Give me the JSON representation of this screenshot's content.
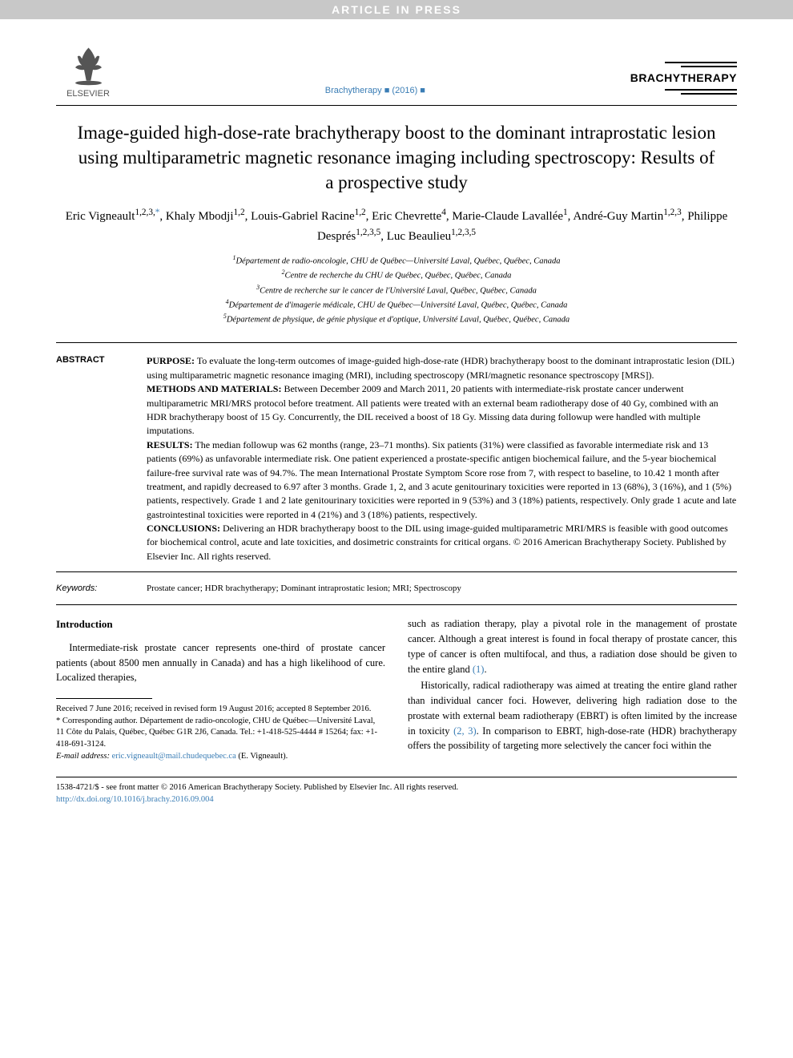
{
  "banner_text": "ARTICLE IN PRESS",
  "publisher_name": "ELSEVIER",
  "journal_ref": "Brachytherapy ■ (2016) ■",
  "journal_name": "BRACHYTHERAPY",
  "title": "Image-guided high-dose-rate brachytherapy boost to the dominant intraprostatic lesion using multiparametric magnetic resonance imaging including spectroscopy: Results of a prospective study",
  "authors_html": "Eric Vigneault<sup>1,2,3,</sup><sup class='sup-link'>*</sup>, Khaly Mbodji<sup>1,2</sup>, Louis-Gabriel Racine<sup>1,2</sup>, Eric Chevrette<sup>4</sup>, Marie-Claude Lavallée<sup>1</sup>, André-Guy Martin<sup>1,2,3</sup>, Philippe Després<sup>1,2,3,5</sup>, Luc Beaulieu<sup>1,2,3,5</sup>",
  "affiliations": [
    "<sup>1</sup>Département de radio-oncologie, CHU de Québec—Université Laval, Québec, Québec, Canada",
    "<sup>2</sup>Centre de recherche du CHU de Québec, Québec, Québec, Canada",
    "<sup>3</sup>Centre de recherche sur le cancer de l'Université Laval, Québec, Québec, Canada",
    "<sup>4</sup>Département de d'imagerie médicale, CHU de Québec—Université Laval, Québec, Québec, Canada",
    "<sup>5</sup>Département de physique, de génie physique et d'optique, Université Laval, Québec, Québec, Canada"
  ],
  "abstract_label": "ABSTRACT",
  "abstract": {
    "purpose_label": "PURPOSE:",
    "purpose": " To evaluate the long-term outcomes of image-guided high-dose-rate (HDR) brachytherapy boost to the dominant intraprostatic lesion (DIL) using multiparametric magnetic resonance imaging (MRI), including spectroscopy (MRI/magnetic resonance spectroscopy [MRS]).",
    "methods_label": "METHODS AND MATERIALS:",
    "methods": " Between December 2009 and March 2011, 20 patients with intermediate-risk prostate cancer underwent multiparametric MRI/MRS protocol before treatment. All patients were treated with an external beam radiotherapy dose of 40 Gy, combined with an HDR brachytherapy boost of 15 Gy. Concurrently, the DIL received a boost of 18 Gy. Missing data during followup were handled with multiple imputations.",
    "results_label": "RESULTS:",
    "results": " The median followup was 62 months (range, 23–71 months). Six patients (31%) were classified as favorable intermediate risk and 13 patients (69%) as unfavorable intermediate risk. One patient experienced a prostate-specific antigen biochemical failure, and the 5-year biochemical failure-free survival rate was of 94.7%. The mean International Prostate Symptom Score rose from 7, with respect to baseline, to 10.42 1 month after treatment, and rapidly decreased to 6.97 after 3 months. Grade 1, 2, and 3 acute genitourinary toxicities were reported in 13 (68%), 3 (16%), and 1 (5%) patients, respectively. Grade 1 and 2 late genitourinary toxicities were reported in 9 (53%) and 3 (18%) patients, respectively. Only grade 1 acute and late gastrointestinal toxicities were reported in 4 (21%) and 3 (18%) patients, respectively.",
    "conclusions_label": "CONCLUSIONS:",
    "conclusions": " Delivering an HDR brachytherapy boost to the DIL using image-guided multiparametric MRI/MRS is feasible with good outcomes for biochemical control, acute and late toxicities, and dosimetric constraints for critical organs. © 2016 American Brachytherapy Society. Published by Elsevier Inc. All rights reserved."
  },
  "keywords_label": "Keywords:",
  "keywords": "Prostate cancer; HDR brachytherapy; Dominant intraprostatic lesion; MRI; Spectroscopy",
  "intro_heading": "Introduction",
  "col1_para1": "Intermediate-risk prostate cancer represents one-third of prostate cancer patients (about 8500 men annually in Canada) and has a high likelihood of cure. Localized therapies,",
  "footnote_received": "Received 7 June 2016; received in revised form 19 August 2016; accepted 8 September 2016.",
  "footnote_corresponding": "* Corresponding author. Département de radio-oncologie, CHU de Québec—Université Laval, 11 Côte du Palais, Québec, Québec G1R 2J6, Canada. Tel.: +1-418-525-4444 # 15264; fax: +1-418-691-3124.",
  "footnote_email_label": "E-mail address:",
  "footnote_email": "eric.vigneault@mail.chudequebec.ca",
  "footnote_email_suffix": " (E. Vigneault).",
  "col2_para1": "such as radiation therapy, play a pivotal role in the management of prostate cancer. Although a great interest is found in focal therapy of prostate cancer, this type of cancer is often multifocal, and thus, a radiation dose should be given to the entire gland ",
  "cite1": "(1)",
  "col2_para1_end": ".",
  "col2_para2a": "Historically, radical radiotherapy was aimed at treating the entire gland rather than individual cancer foci. However, delivering high radiation dose to the prostate with external beam radiotherapy (EBRT) is often limited by the increase in toxicity ",
  "cite23": "(2, 3)",
  "col2_para2b": ". In comparison to EBRT, high-dose-rate (HDR) brachytherapy offers the possibility of targeting more selectively the cancer foci within the",
  "copyright_line1": "1538-4721/$ - see front matter © 2016 American Brachytherapy Society. Published by Elsevier Inc. All rights reserved.",
  "doi": "http://dx.doi.org/10.1016/j.brachy.2016.09.004",
  "colors": {
    "banner_bg": "#c8c8c8",
    "banner_text": "#ffffff",
    "link": "#3a7db5",
    "text": "#000000",
    "logo_fill": "#444444"
  }
}
